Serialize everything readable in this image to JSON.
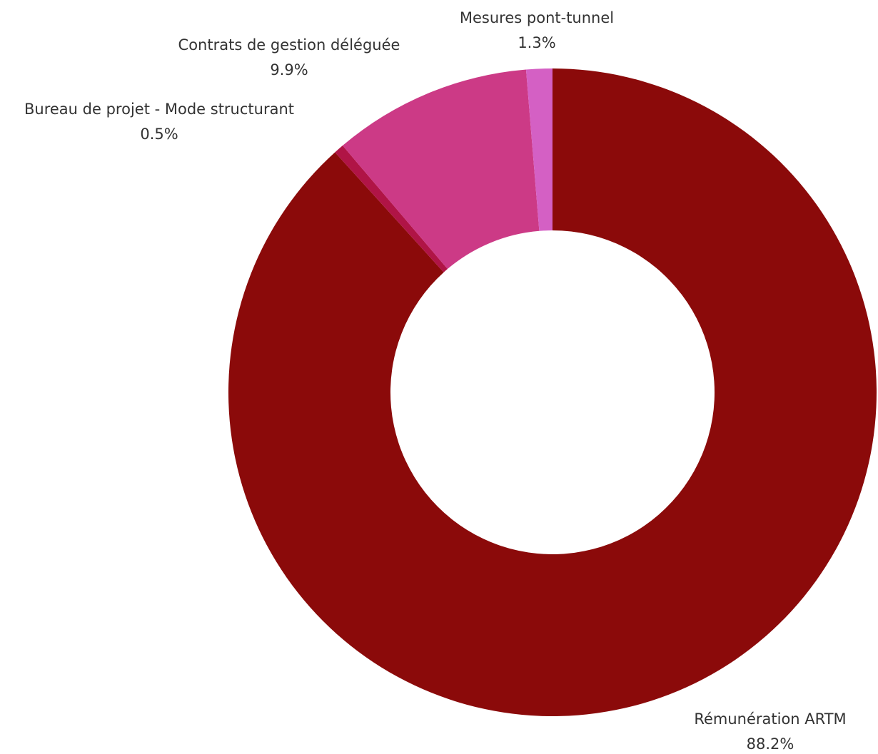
{
  "chart_data": {
    "type": "pie",
    "donut": true,
    "title": "",
    "slices": [
      {
        "label": "Rémunération ARTM",
        "value": 88.2,
        "value_label": "88.2%",
        "color": "#8b0a0a"
      },
      {
        "label": "Bureau de projet - Mode structurant",
        "value": 0.5,
        "value_label": "0.5%",
        "color": "#b01446"
      },
      {
        "label": "Contrats de gestion déléguée",
        "value": 9.9,
        "value_label": "9.9%",
        "color": "#cc3a86"
      },
      {
        "label": "Mesures pont-tunnel",
        "value": 1.3,
        "value_label": "1.3%",
        "color": "#d460c4"
      }
    ],
    "start_angle": "12 o'clock",
    "direction": "clockwise",
    "legend": "none",
    "labels": "outside"
  }
}
